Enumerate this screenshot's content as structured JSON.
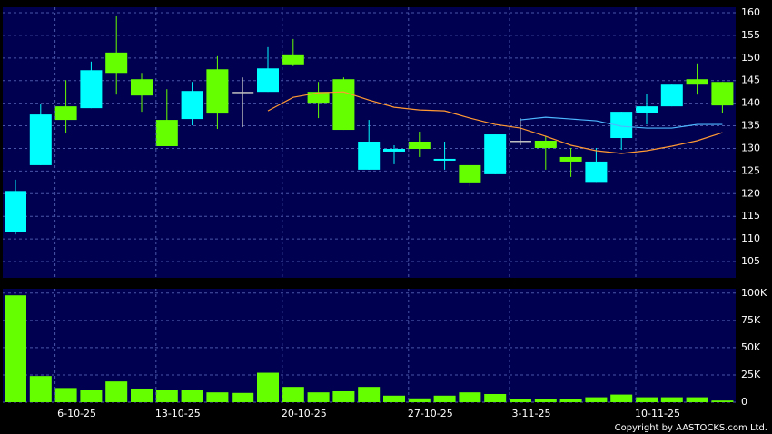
{
  "chart_data": [
    {
      "type": "candlestick",
      "open": [
        111.6,
        126.3,
        139.3,
        138.9,
        151.2,
        145.3,
        136.3,
        136.5,
        147.5,
        142.5,
        142.5,
        150.6,
        142.5,
        145.3,
        125.3,
        129.3,
        131.5,
        127.3,
        126.3,
        124.3,
        131.7,
        131.7,
        128.1,
        122.4,
        132.3,
        137.9,
        139.3,
        145.3,
        144.7
      ],
      "high": [
        123.1,
        139.9,
        145.1,
        149.2,
        159.2,
        146.7,
        143.1,
        144.7,
        150.4,
        145.7,
        152.4,
        154.2,
        144.7,
        145.7,
        136.3,
        130.7,
        133.7,
        131.5,
        126.3,
        133.1,
        136.7,
        132.7,
        130.1,
        130.1,
        138.1,
        142.1,
        144.1,
        148.8,
        144.7
      ],
      "low": [
        111.0,
        126.3,
        133.3,
        138.9,
        141.9,
        138.1,
        130.5,
        135.1,
        134.3,
        134.7,
        142.5,
        148.2,
        136.7,
        134.1,
        125.3,
        126.5,
        128.1,
        125.3,
        121.6,
        124.3,
        130.7,
        125.3,
        123.7,
        122.4,
        129.7,
        135.3,
        139.3,
        141.9,
        137.9
      ],
      "close": [
        120.6,
        137.5,
        136.3,
        147.3,
        146.7,
        141.7,
        130.5,
        142.7,
        137.7,
        142.5,
        147.7,
        148.4,
        140.1,
        134.1,
        131.5,
        129.9,
        129.9,
        127.7,
        122.3,
        133.1,
        131.7,
        130.1,
        127.1,
        127.1,
        138.1,
        139.3,
        144.1,
        144.1,
        139.5
      ],
      "up_color": "#00ffff",
      "down_color": "#66ff00",
      "doji_color": "#c0c0c0",
      "series": [
        {
          "color": "#ff9933",
          "values": [
            null,
            null,
            null,
            null,
            null,
            null,
            null,
            null,
            null,
            null,
            138.3,
            141.3,
            142.3,
            142.5,
            140.7,
            139.1,
            138.5,
            138.3,
            136.7,
            135.3,
            134.5,
            132.7,
            130.7,
            129.5,
            128.9,
            129.5,
            130.5,
            131.7,
            133.5
          ]
        },
        {
          "color": "#4db8ff",
          "values": [
            null,
            null,
            null,
            null,
            null,
            null,
            null,
            null,
            null,
            null,
            null,
            null,
            null,
            null,
            null,
            null,
            null,
            null,
            null,
            null,
            136.3,
            136.9,
            136.5,
            136.1,
            134.9,
            134.5,
            134.5,
            135.3,
            135.3
          ]
        }
      ],
      "ylim": [
        101.4,
        161.2
      ],
      "yticks": [
        105,
        110,
        115,
        120,
        125,
        130,
        135,
        140,
        145,
        150,
        155,
        160
      ],
      "grid": true
    },
    {
      "type": "bar",
      "categories": [
        null,
        null,
        "6-10-25",
        null,
        null,
        null,
        "13-10-25",
        null,
        null,
        null,
        null,
        "20-10-25",
        null,
        null,
        null,
        null,
        "27-10-25",
        null,
        null,
        null,
        "3-11-25",
        null,
        null,
        null,
        null,
        "10-11-25",
        null,
        null,
        null
      ],
      "values": [
        98000,
        24000,
        13000,
        11000,
        19000,
        12500,
        11000,
        11000,
        9000,
        8500,
        27000,
        14000,
        9000,
        10000,
        14000,
        6000,
        3500,
        6000,
        9000,
        7500,
        2500,
        2500,
        2500,
        4500,
        7000,
        4500,
        4500,
        4500,
        1500
      ],
      "color": "#66ff00",
      "ylim": [
        0,
        104000
      ],
      "yticks": [
        0,
        {
          "value": 25000,
          "label": "25K"
        },
        {
          "value": 50000,
          "label": "50K"
        },
        {
          "value": 75000,
          "label": "75K"
        },
        {
          "value": 100000,
          "label": "100K"
        }
      ],
      "grid": true
    }
  ],
  "footer": "Copyright by AASTOCKS.com Ltd."
}
